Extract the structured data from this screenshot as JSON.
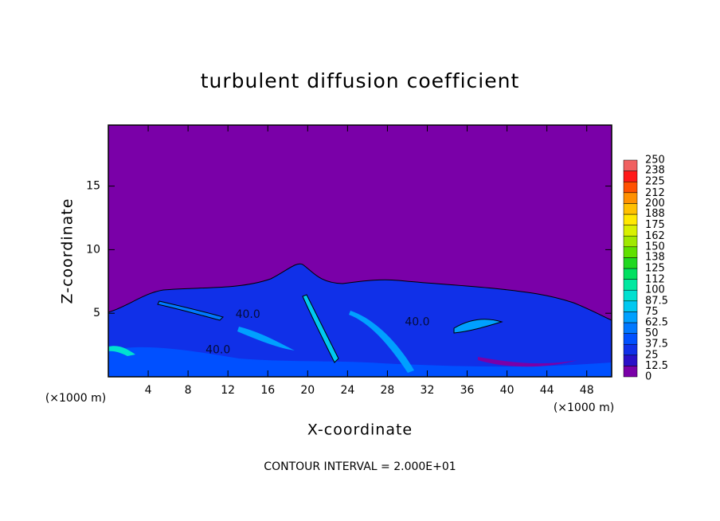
{
  "chart_data": {
    "type": "contour",
    "title": "turbulent diffusion coefficient",
    "xlabel": "X-coordinate",
    "ylabel": "Z-coordinate",
    "x_unit": "(×1000 m)",
    "y_unit": "(×1000 m)",
    "footer": "CONTOUR INTERVAL = 2.000E+01",
    "xlim": [
      0,
      50.5
    ],
    "ylim": [
      0,
      19.8
    ],
    "xticks": [
      4,
      8,
      12,
      16,
      20,
      24,
      28,
      32,
      36,
      40,
      44,
      48
    ],
    "yticks": [
      5,
      10,
      15
    ],
    "colorbar_ticks": [
      0,
      12.5,
      25,
      37.5,
      50,
      62.5,
      75,
      87.5,
      100,
      112,
      125,
      138,
      150,
      162,
      175,
      188,
      200,
      212,
      225,
      238,
      250
    ],
    "colorbar_colors": [
      "#7a00a8",
      "#2a10c8",
      "#1030e8",
      "#0050ff",
      "#0078ff",
      "#00a0ff",
      "#00c8f0",
      "#00e0d0",
      "#00e8a0",
      "#00e060",
      "#20d820",
      "#60e000",
      "#a0e800",
      "#d8f000",
      "#ffe800",
      "#ffc000",
      "#ff9000",
      "#ff5000",
      "#ff1818",
      "#f06060"
    ],
    "contour_labels": [
      {
        "value": 40,
        "label": "40.0",
        "x": 14,
        "z": 4.9
      },
      {
        "value": 40,
        "label": "40.0",
        "x": 11,
        "z": 2.1
      },
      {
        "value": 40,
        "label": "40.0",
        "x": 31,
        "z": 4.3
      }
    ]
  }
}
